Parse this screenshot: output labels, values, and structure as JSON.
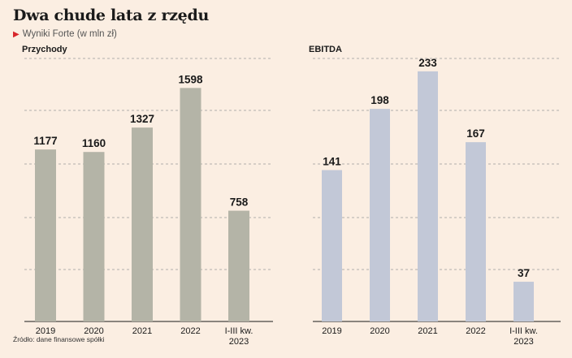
{
  "title": "Dwa chude lata z rzędu",
  "subtitle": "Wyniki Forte (w mln zł)",
  "source": "Źródło: dane finansowe spółki",
  "colors": {
    "przychody": "#b4b4a7",
    "ebitda": "#c2c8d7",
    "accent": "#d7262b"
  },
  "chart_data": [
    {
      "type": "bar",
      "title": "Przychody",
      "categories": [
        "2019",
        "2020",
        "2021",
        "2022",
        "I-III kw.\n2023"
      ],
      "values": [
        1177,
        1160,
        1327,
        1598,
        758
      ],
      "ylim": [
        0,
        1800
      ],
      "grid": true
    },
    {
      "type": "bar",
      "title": "EBITDA",
      "categories": [
        "2019",
        "2020",
        "2021",
        "2022",
        "I-III kw.\n2023"
      ],
      "values": [
        141,
        198,
        233,
        167,
        37
      ],
      "ylim": [
        0,
        245
      ],
      "grid": true
    }
  ]
}
